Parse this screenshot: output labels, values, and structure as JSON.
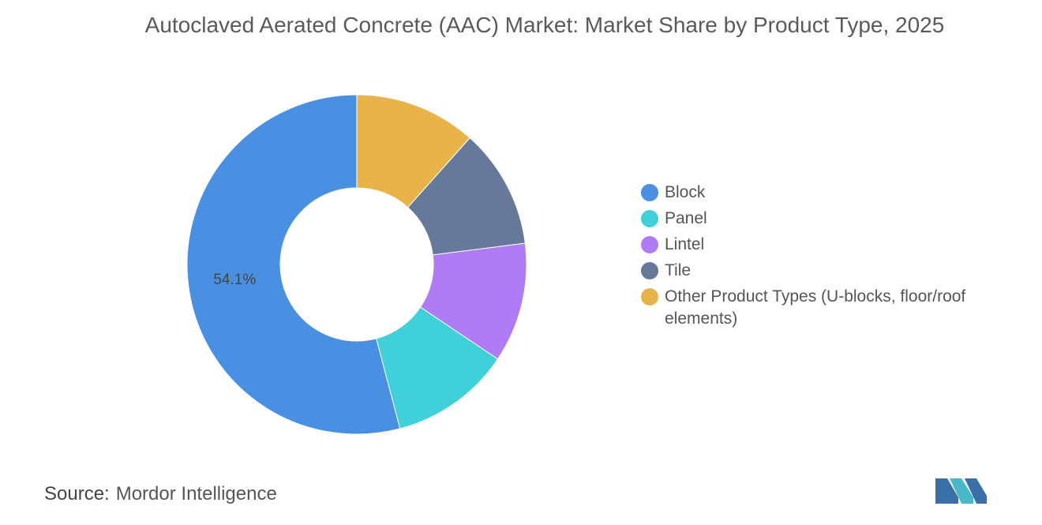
{
  "chart_data": {
    "type": "pie",
    "donut": true,
    "title": "Autoclaved Aerated Concrete (AAC) Market: Market Share by Product Type, 2025",
    "categories": [
      "Block",
      "Panel",
      "Lintel",
      "Tile",
      "Other Product Types (U-blocks, floor/roof elements)"
    ],
    "values": [
      54.1,
      11.5,
      11.4,
      11.4,
      11.6
    ],
    "value_labels": [
      "54.1%",
      null,
      null,
      null,
      null
    ],
    "colors": [
      "#4a90e2",
      "#3fd0d9",
      "#b07cf5",
      "#66799a",
      "#e8b44a"
    ],
    "source_label": "Source:",
    "source": "Mordor Intelligence"
  }
}
